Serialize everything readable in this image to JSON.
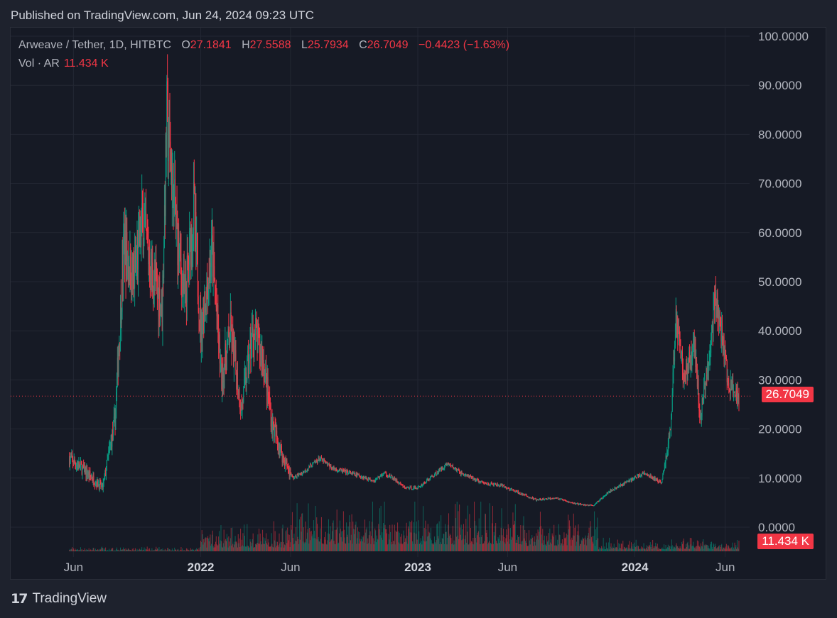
{
  "published": "Published on TradingView.com, Jun 24, 2024 09:23 UTC",
  "legend": {
    "symbol": "Arweave / Tether, 1D, HITBTC",
    "o_label": "O",
    "o_value": "27.1841",
    "h_label": "H",
    "h_value": "27.5588",
    "l_label": "L",
    "l_value": "25.7934",
    "c_label": "C",
    "c_value": "26.7049",
    "change": "−0.4423 (−1.63%)",
    "vol_label": "Vol · AR",
    "vol_value": "11.434 K"
  },
  "price_tag": "26.7049",
  "vol_tag": "11.434 K",
  "brand": "TradingView",
  "colors": {
    "up": "#089981",
    "down": "#f23645",
    "grid": "#232733",
    "axis_text": "#b2b5be",
    "background": "#161a25"
  },
  "chart_data": {
    "type": "candlestick",
    "y_ticks": [
      "100.0000",
      "90.0000",
      "80.0000",
      "70.0000",
      "60.0000",
      "50.0000",
      "40.0000",
      "30.0000",
      "20.0000",
      "10.0000",
      "0.0000"
    ],
    "x_ticks": [
      "Jun",
      "2022",
      "Jun",
      "2023",
      "Jun",
      "2024",
      "Jun"
    ],
    "ylim": [
      0,
      100
    ],
    "last_close": 26.7049,
    "path_dates": [
      "2021-05-25",
      "2021-06-15",
      "2021-07-20",
      "2021-08-10",
      "2021-08-25",
      "2021-09-10",
      "2021-09-25",
      "2021-10-10",
      "2021-10-28",
      "2021-11-05",
      "2021-11-20",
      "2021-12-05",
      "2021-12-20",
      "2022-01-01",
      "2022-01-20",
      "2022-02-05",
      "2022-02-20",
      "2022-03-10",
      "2022-03-30",
      "2022-04-15",
      "2022-05-01",
      "2022-05-20",
      "2022-06-05",
      "2022-06-20",
      "2022-07-20",
      "2022-08-10",
      "2022-09-10",
      "2022-10-20",
      "2022-11-05",
      "2022-11-20",
      "2022-12-10",
      "2023-01-01",
      "2023-02-01",
      "2023-02-20",
      "2023-03-15",
      "2023-04-20",
      "2023-05-20",
      "2023-06-20",
      "2023-07-20",
      "2023-08-20",
      "2023-09-15",
      "2023-10-10",
      "2023-10-25",
      "2023-11-15",
      "2023-12-15",
      "2024-01-15",
      "2024-02-01",
      "2024-02-15",
      "2024-03-01",
      "2024-03-10",
      "2024-03-25",
      "2024-04-10",
      "2024-04-20",
      "2024-05-05",
      "2024-05-15",
      "2024-05-25",
      "2024-06-05",
      "2024-06-15",
      "2024-06-24"
    ],
    "path_closes": [
      14,
      12,
      8,
      22,
      58,
      50,
      62,
      52,
      45,
      83,
      62,
      46,
      65,
      40,
      56,
      30,
      40,
      24,
      40,
      35,
      21,
      14,
      10,
      11,
      14,
      12,
      11,
      9.5,
      11,
      10,
      8,
      8,
      11,
      13,
      11,
      9,
      8.5,
      7,
      5.5,
      6,
      5,
      4.5,
      4.5,
      7,
      9,
      11,
      10,
      9,
      20,
      43,
      30,
      38,
      22,
      35,
      47,
      40,
      30,
      27.5,
      26.7049
    ],
    "volume_note": "volume bars shown below price, in AR"
  }
}
